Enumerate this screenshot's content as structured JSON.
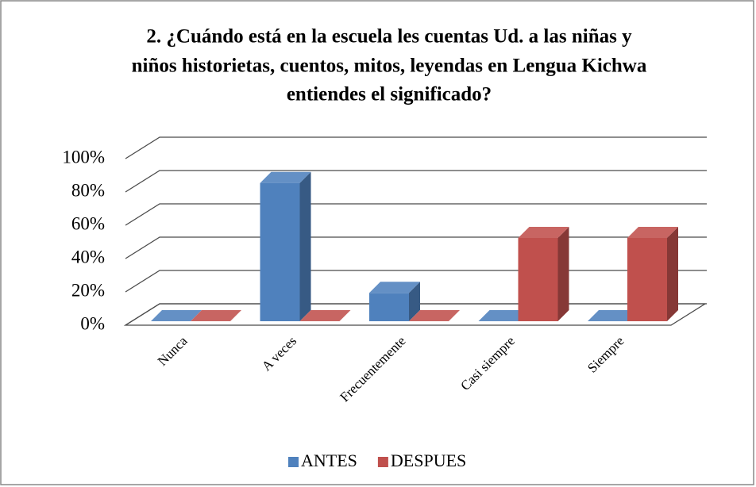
{
  "chart_data": {
    "type": "bar3d",
    "title": [
      "2.  ¿Cuándo está en la escuela les cuentas Ud. a las niñas y",
      "niños historietas, cuentos,  mitos, leyendas en Lengua Kichwa",
      "entiendes el significado?"
    ],
    "categories": [
      "Nunca",
      "A veces",
      "Frecuentemente",
      "Casi siempre",
      "Siempre"
    ],
    "series": [
      {
        "name": "ANTES",
        "color": "#4f81bd",
        "values": [
          0,
          83,
          17,
          0,
          0
        ]
      },
      {
        "name": "DESPUES",
        "color": "#c0504d",
        "values": [
          0,
          0,
          0,
          50,
          50
        ]
      }
    ],
    "ylim": [
      0,
      100
    ],
    "yticks": [
      {
        "value": 0,
        "label": "0%"
      },
      {
        "value": 20,
        "label": "20%"
      },
      {
        "value": 40,
        "label": "40%"
      },
      {
        "value": 60,
        "label": "60%"
      },
      {
        "value": 80,
        "label": "80%"
      },
      {
        "value": 100,
        "label": "100%"
      }
    ],
    "grid": true,
    "legend": "bottom"
  }
}
